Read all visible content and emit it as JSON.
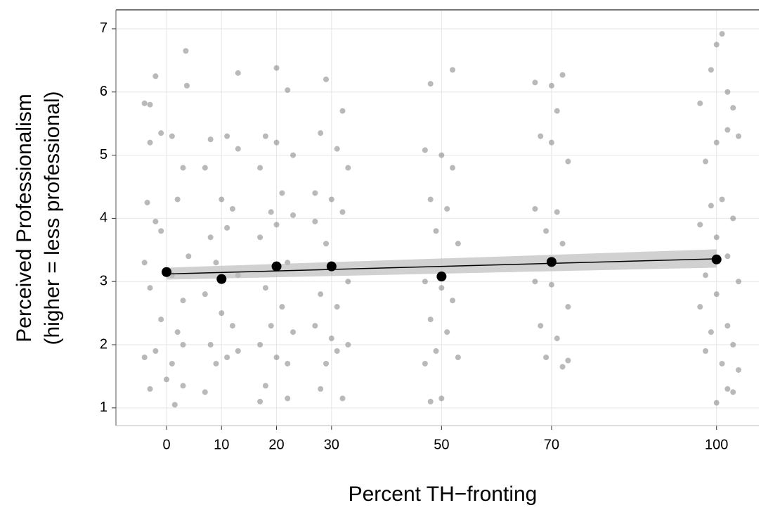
{
  "chart_data": {
    "type": "scatter",
    "y_label_lines": [
      "Perceived Professionalism",
      "(higher = less professional)"
    ],
    "x_label": "Percent TH−fronting",
    "xlim": [
      -9.2,
      107.7
    ],
    "ylim": [
      0.72,
      7.3
    ],
    "xticks": [
      0,
      10,
      20,
      30,
      50,
      70,
      100
    ],
    "yticks": [
      1,
      2,
      3,
      4,
      5,
      6,
      7
    ],
    "grid": true,
    "points": {
      "color": "#7f7f7f",
      "x": [
        -4,
        -3,
        -2,
        3.5,
        3.7,
        -3,
        -1,
        1,
        3,
        -3.5,
        2,
        -2,
        4,
        -4,
        1,
        -3,
        3,
        -1,
        2,
        -4,
        -2,
        1,
        3,
        -3,
        0,
        1.5,
        3,
        -1,
        8,
        11,
        13,
        7,
        10,
        12,
        8,
        11,
        9,
        13,
        7,
        10,
        12,
        8,
        11,
        9,
        13,
        7,
        13,
        20,
        22,
        18,
        20,
        23,
        17,
        21,
        19,
        23,
        17,
        20,
        22,
        18,
        21,
        19,
        23,
        17,
        20,
        22,
        17,
        22,
        18,
        29,
        32,
        28,
        31,
        33,
        27,
        30,
        32,
        27,
        29,
        33,
        28,
        31,
        27,
        30,
        33,
        29,
        31,
        28,
        32,
        48,
        52,
        47,
        50,
        52,
        48,
        51,
        49,
        53,
        47,
        50,
        52,
        48,
        51,
        49,
        53,
        47,
        50,
        48,
        67,
        70,
        72,
        71,
        68,
        70,
        73,
        67,
        71,
        69,
        72,
        67,
        70,
        73,
        68,
        71,
        69,
        72,
        73,
        101,
        100,
        99,
        102,
        97,
        103,
        100,
        102,
        98,
        104,
        101,
        99,
        103,
        97,
        100,
        102,
        98,
        104,
        100,
        97,
        102,
        99,
        103,
        98,
        101,
        104,
        102,
        103,
        100
      ],
      "y": [
        5.82,
        5.8,
        6.25,
        6.65,
        6.1,
        5.2,
        5.35,
        5.3,
        4.8,
        4.25,
        4.3,
        3.95,
        3.4,
        3.3,
        3.1,
        2.9,
        2.7,
        2.4,
        2.2,
        1.8,
        1.9,
        1.7,
        2.0,
        1.3,
        1.45,
        1.05,
        1.35,
        3.8,
        5.25,
        5.3,
        5.1,
        4.8,
        4.3,
        4.15,
        3.7,
        3.85,
        3.3,
        3.1,
        2.8,
        2.5,
        2.3,
        2.0,
        1.8,
        1.7,
        1.9,
        1.25,
        6.3,
        6.38,
        6.03,
        5.3,
        5.2,
        5.0,
        4.8,
        4.4,
        4.1,
        4.05,
        3.7,
        3.9,
        3.3,
        2.9,
        2.6,
        2.3,
        2.2,
        2.0,
        1.8,
        1.7,
        1.1,
        1.15,
        1.35,
        6.2,
        5.7,
        5.35,
        5.1,
        4.8,
        4.4,
        4.3,
        4.1,
        3.95,
        3.6,
        3.0,
        2.8,
        2.6,
        2.3,
        2.1,
        2.0,
        1.7,
        1.9,
        1.3,
        1.15,
        6.13,
        6.35,
        5.08,
        5.0,
        4.8,
        4.3,
        4.15,
        3.8,
        3.6,
        3.0,
        2.9,
        2.7,
        2.4,
        2.2,
        1.9,
        1.8,
        1.7,
        1.15,
        1.1,
        6.15,
        6.1,
        6.27,
        5.7,
        5.3,
        5.2,
        4.9,
        4.15,
        4.1,
        3.8,
        3.6,
        3.0,
        2.95,
        2.6,
        2.3,
        2.1,
        1.8,
        1.65,
        1.75,
        6.92,
        6.75,
        6.35,
        6.0,
        5.82,
        5.75,
        5.2,
        5.4,
        4.9,
        5.3,
        4.3,
        4.2,
        4.0,
        3.9,
        3.7,
        3.4,
        3.1,
        3.0,
        2.8,
        2.6,
        2.3,
        2.2,
        2.0,
        1.9,
        1.7,
        1.6,
        1.3,
        1.25,
        1.08
      ]
    },
    "means": {
      "color": "#000000",
      "x": [
        0,
        10,
        20,
        30,
        50,
        70,
        100
      ],
      "values": [
        3.15,
        3.04,
        3.24,
        3.24,
        3.08,
        3.31,
        3.35
      ]
    },
    "fit": {
      "color": "#000000",
      "band_color": "#bdbdbd",
      "x": [
        0,
        100
      ],
      "values": [
        3.12,
        3.36
      ],
      "lower": [
        3.03,
        3.22
      ],
      "upper": [
        3.22,
        3.51
      ]
    }
  }
}
